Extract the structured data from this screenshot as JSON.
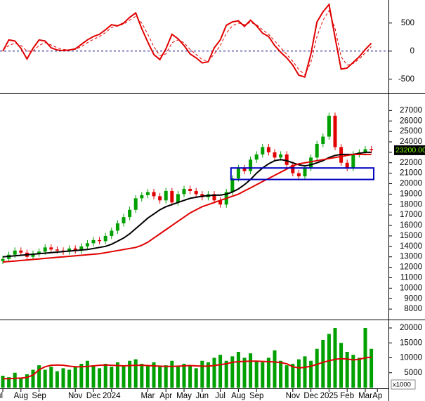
{
  "chart_data": [
    {
      "type": "line",
      "series": [
        {
          "color": "#e00000",
          "values": [
            0,
            200,
            180,
            50,
            -140,
            50,
            200,
            180,
            60,
            20,
            10,
            20,
            40,
            120,
            200,
            260,
            300,
            380,
            470,
            450,
            500,
            600,
            680,
            400,
            160,
            -60,
            -150,
            40,
            300,
            220,
            100,
            -50,
            -120,
            -210,
            -190,
            60,
            200,
            460,
            520,
            540,
            440,
            550,
            450,
            320,
            260,
            100,
            -20,
            -120,
            -250,
            -430,
            -460,
            -50,
            520,
            700,
            830,
            240,
            -320,
            -300,
            -200,
            -100,
            30,
            140,
            null
          ]
        },
        {
          "color": "#e00000",
          "dash": true,
          "values": [
            20,
            100,
            140,
            100,
            0,
            0,
            100,
            150,
            110,
            60,
            30,
            20,
            30,
            80,
            150,
            210,
            260,
            330,
            420,
            450,
            480,
            550,
            620,
            500,
            300,
            80,
            -80,
            -50,
            150,
            200,
            150,
            30,
            -60,
            -150,
            -180,
            -50,
            100,
            320,
            450,
            500,
            470,
            510,
            470,
            380,
            300,
            180,
            60,
            -60,
            -180,
            -330,
            -420,
            -200,
            260,
            550,
            720,
            400,
            -100,
            -250,
            -220,
            -140,
            -30,
            80,
            null
          ]
        }
      ],
      "ylim": [
        -740,
        910
      ],
      "yticks": [
        -500,
        0,
        500
      ],
      "reference_line": 0
    },
    {
      "type": "candlestick",
      "open": [
        12600,
        12800,
        13200,
        13600,
        13400,
        13000,
        13300,
        13500,
        13900,
        13700,
        13600,
        13500,
        13800,
        13600,
        14000,
        14300,
        14600,
        14500,
        15000,
        15500,
        16200,
        16800,
        17500,
        18600,
        18900,
        19200,
        18800,
        18400,
        19300,
        18200,
        19000,
        19500,
        19300,
        19000,
        18700,
        19000,
        18400,
        18000,
        19200,
        20500,
        21500,
        21200,
        22300,
        22800,
        23500,
        23000,
        22500,
        22800,
        21800,
        21000,
        20700,
        21500,
        22500,
        23800,
        24500,
        26500,
        23500,
        22000,
        21500,
        22800,
        23000,
        23300,
        null
      ],
      "high": [
        13100,
        13500,
        13900,
        13900,
        13700,
        13600,
        13800,
        14200,
        14200,
        14000,
        13900,
        14100,
        14100,
        14300,
        14600,
        14900,
        14900,
        15300,
        15800,
        16500,
        17100,
        17800,
        18900,
        19200,
        19500,
        19500,
        19100,
        19600,
        19600,
        19300,
        19800,
        19800,
        19600,
        19300,
        19300,
        19300,
        18700,
        19500,
        20800,
        21800,
        21800,
        22600,
        23100,
        23800,
        23800,
        23300,
        23100,
        23100,
        22100,
        21300,
        21800,
        22800,
        24100,
        24800,
        26800,
        26800,
        23800,
        22300,
        23100,
        23300,
        23600,
        23600,
        null
      ],
      "low": [
        12300,
        12500,
        12900,
        13100,
        12700,
        12700,
        13000,
        13200,
        13400,
        13300,
        13200,
        13200,
        13300,
        13300,
        13700,
        14000,
        14200,
        14200,
        14700,
        15200,
        15900,
        16500,
        17200,
        18300,
        18600,
        18500,
        18100,
        18100,
        17900,
        17900,
        18700,
        19000,
        18700,
        18400,
        18400,
        18100,
        17700,
        17700,
        18900,
        20200,
        20900,
        20900,
        22000,
        22500,
        22700,
        22200,
        22200,
        21500,
        20700,
        20400,
        20400,
        21200,
        22200,
        23500,
        24200,
        23200,
        21700,
        21200,
        21200,
        22500,
        22700,
        22900,
        null
      ],
      "close": [
        12800,
        13200,
        13600,
        13400,
        13000,
        13300,
        13500,
        13900,
        13700,
        13600,
        13500,
        13800,
        13600,
        14000,
        14300,
        14600,
        14500,
        15000,
        15500,
        16200,
        16800,
        17500,
        18600,
        18900,
        19200,
        18800,
        18400,
        19300,
        18200,
        19000,
        19500,
        19300,
        19000,
        18700,
        19000,
        18400,
        18000,
        19200,
        20500,
        21500,
        21200,
        22300,
        22800,
        23500,
        23000,
        22500,
        22800,
        21800,
        21000,
        20700,
        21500,
        22500,
        23800,
        24500,
        26500,
        23500,
        22000,
        21500,
        22800,
        23000,
        23300,
        23200,
        null
      ],
      "up_color": "#00a000",
      "down_color": "#e00000",
      "series": [
        {
          "color": "#000000",
          "values": [
            13000,
            13050,
            13100,
            13150,
            13200,
            13250,
            13300,
            13350,
            13400,
            13450,
            13500,
            13550,
            13600,
            13650,
            13700,
            13800,
            13900,
            14000,
            14200,
            14500,
            14800,
            15200,
            15700,
            16200,
            16700,
            17100,
            17500,
            17800,
            18000,
            18200,
            18400,
            18600,
            18700,
            18800,
            18850,
            18900,
            18900,
            19000,
            19200,
            19500,
            19900,
            20400,
            21000,
            21500,
            21900,
            22200,
            22300,
            22200,
            22000,
            21800,
            21700,
            21800,
            22000,
            22200,
            22500,
            22700,
            22800,
            22800,
            22800,
            22900,
            23000,
            23000,
            null
          ]
        },
        {
          "color": "#e00000",
          "values": [
            12500,
            12550,
            12600,
            12650,
            12700,
            12750,
            12800,
            12850,
            12900,
            12950,
            13000,
            13050,
            13100,
            13150,
            13200,
            13250,
            13300,
            13400,
            13500,
            13600,
            13700,
            13800,
            13900,
            14100,
            14400,
            14800,
            15200,
            15600,
            16000,
            16400,
            16800,
            17200,
            17500,
            17800,
            18000,
            18200,
            18400,
            18600,
            18800,
            19000,
            19300,
            19600,
            19900,
            20200,
            20500,
            20800,
            21100,
            21400,
            21700,
            21900,
            22000,
            22100,
            22200,
            22300,
            22400,
            22500,
            22600,
            22700,
            22800,
            22800,
            22800,
            22800,
            null
          ]
        }
      ],
      "ylim": [
        7000,
        28300
      ],
      "yticks": [
        8000,
        9000,
        10000,
        11000,
        12000,
        13000,
        14000,
        15000,
        16000,
        17000,
        18000,
        19000,
        20000,
        21000,
        22000,
        23000,
        24000,
        25000,
        26000,
        27000
      ],
      "last_label": "23200.00",
      "zone": [
        20400,
        21500
      ],
      "zone_color": "#0000c0"
    },
    {
      "type": "bar",
      "categories": [
        "ul",
        null,
        null,
        "Aug",
        null,
        null,
        "Sep",
        null,
        null,
        null,
        null,
        null,
        "Nov",
        null,
        null,
        "Dec",
        null,
        null,
        "2024",
        null,
        null,
        null,
        null,
        null,
        "Mar",
        null,
        null,
        "Apr",
        null,
        null,
        "May",
        null,
        null,
        "Jun",
        null,
        null,
        "Jul",
        null,
        null,
        "Aug",
        null,
        null,
        "Sep",
        null,
        null,
        null,
        null,
        null,
        "Nov",
        null,
        null,
        "Dec",
        null,
        null,
        "2025",
        null,
        null,
        "Feb",
        null,
        null,
        "Mar",
        null,
        "Ap"
      ],
      "values": [
        4000,
        3500,
        5000,
        3000,
        4500,
        6000,
        7500,
        6000,
        7000,
        5500,
        6500,
        6000,
        7000,
        8000,
        9000,
        7500,
        6500,
        8000,
        7000,
        8500,
        7500,
        9000,
        9500,
        8000,
        7500,
        8500,
        7000,
        7500,
        9000,
        7000,
        8000,
        7500,
        6500,
        9000,
        8500,
        10000,
        11000,
        9000,
        10500,
        12000,
        10000,
        11500,
        9000,
        8500,
        10000,
        12500,
        9000,
        7500,
        8000,
        9500,
        10500,
        9000,
        13000,
        16000,
        18000,
        20000,
        15000,
        12000,
        11000,
        10000,
        20000,
        13000,
        null
      ],
      "color": "#00a000",
      "series": [
        {
          "color": "#e00000",
          "values": [
            3000,
            3000,
            3100,
            3200,
            3400,
            4200,
            6000,
            7000,
            7500,
            7600,
            7500,
            7200,
            7000,
            7000,
            7100,
            7300,
            7500,
            7600,
            7500,
            7400,
            7300,
            7400,
            7500,
            7500,
            7400,
            7300,
            7200,
            7100,
            7100,
            7200,
            7300,
            7400,
            7300,
            7200,
            7200,
            7400,
            7700,
            8000,
            8500,
            8700,
            8800,
            8900,
            8900,
            8800,
            8700,
            8600,
            8400,
            8000,
            7000,
            6600,
            6800,
            7200,
            7800,
            8500,
            9000,
            9500,
            9700,
            9600,
            9300,
            9500,
            10000,
            10200,
            null
          ]
        }
      ],
      "ylim": [
        0,
        22350
      ],
      "yticks": [
        5000,
        10000,
        15000,
        20000
      ],
      "unit": "x1000"
    }
  ]
}
